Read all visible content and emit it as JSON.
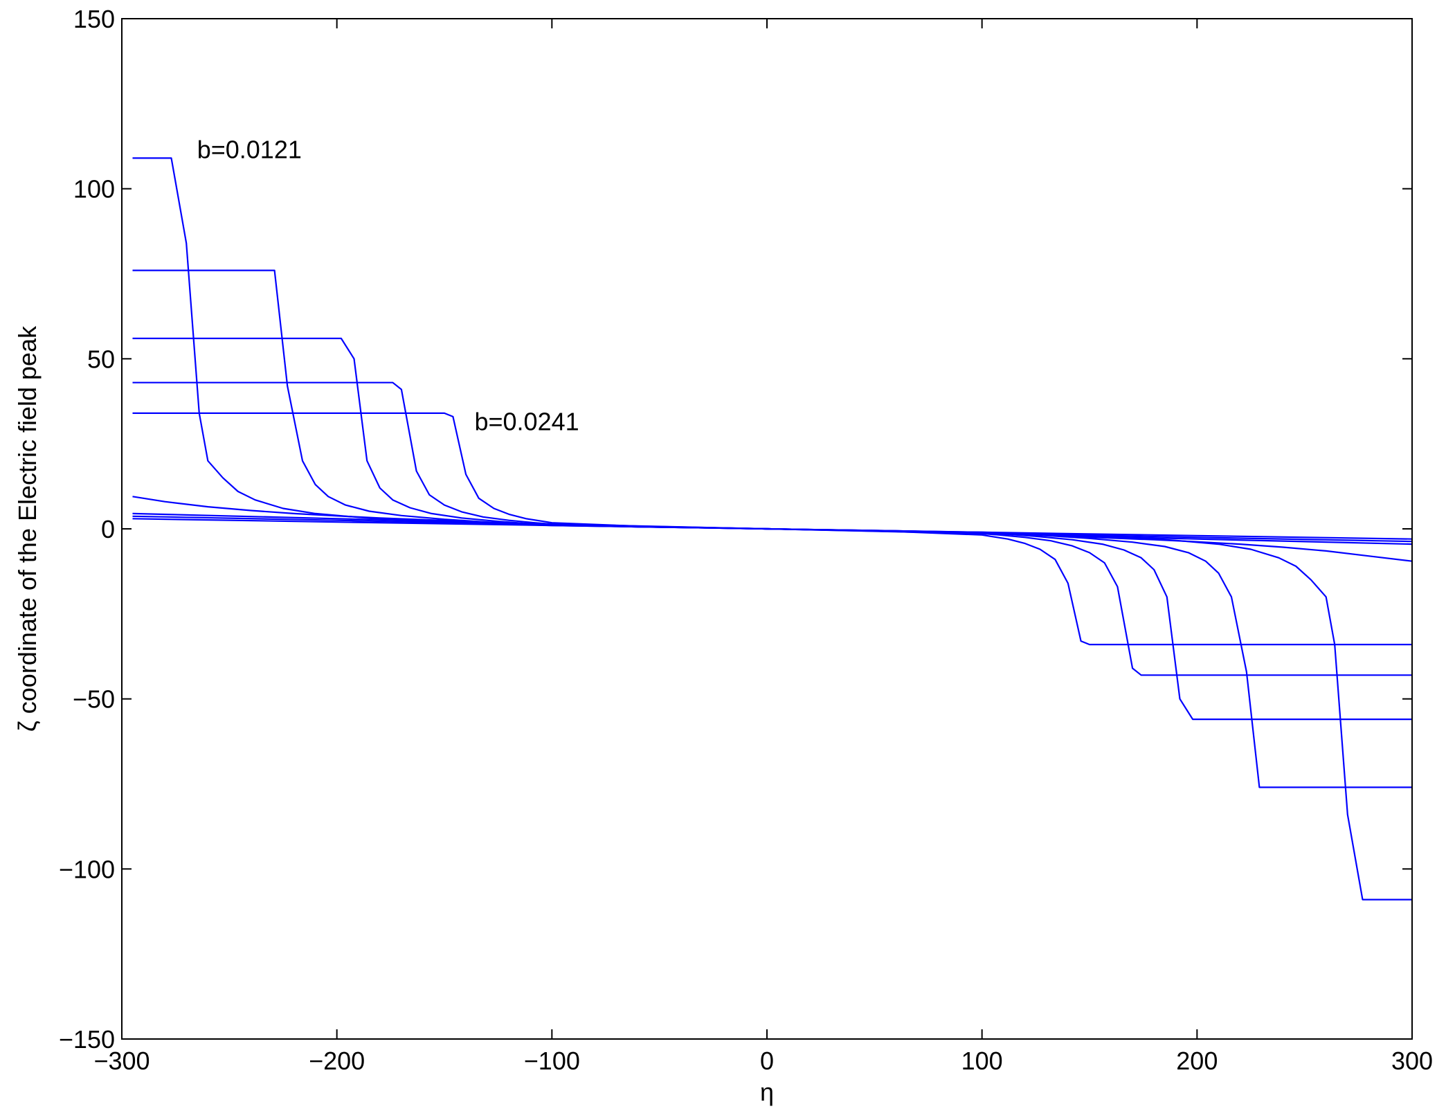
{
  "chart_data": {
    "type": "line",
    "title": "",
    "xlabel": "η",
    "ylabel": "ζ coordinate of the Electric field peak",
    "xlim": [
      -300,
      300
    ],
    "ylim": [
      -150,
      150
    ],
    "xticks": [
      -300,
      -200,
      -100,
      0,
      100,
      200,
      300
    ],
    "yticks": [
      -150,
      -100,
      -50,
      0,
      50,
      100,
      150
    ],
    "xtick_labels": [
      "−300",
      "−200",
      "−100",
      "0",
      "100",
      "200",
      "300"
    ],
    "ytick_labels": [
      "−150",
      "−100",
      "−50",
      "0",
      "50",
      "100",
      "150"
    ],
    "grid": false,
    "line_color": "#0000ff",
    "annotations": [
      {
        "text": "b=0.0121",
        "x": -265,
        "y": 109
      },
      {
        "text": "b=0.0241",
        "x": -136,
        "y": 29
      }
    ],
    "series": [
      {
        "x": [
          -295,
          -277,
          -270,
          -264,
          -260,
          -253,
          -246,
          -238,
          -225,
          -210,
          -190,
          -165,
          -140,
          -110,
          -100,
          -80,
          -40,
          0,
          40,
          80,
          100,
          110,
          140,
          165,
          190,
          210,
          225,
          238,
          246,
          253,
          260,
          264,
          270,
          277,
          300
        ],
        "y": [
          109,
          109,
          84,
          34,
          20,
          15,
          11,
          8.5,
          6,
          4.5,
          3.4,
          2.4,
          1.8,
          1.2,
          1.0,
          0.8,
          0.4,
          0,
          -0.4,
          -0.8,
          -1.0,
          -1.2,
          -1.8,
          -2.4,
          -3.4,
          -4.5,
          -6,
          -8.5,
          -11,
          -15,
          -20,
          -34,
          -84,
          -109,
          -109
        ]
      },
      {
        "x": [
          -295,
          -229,
          -223,
          -216,
          -210,
          -204,
          -196,
          -185,
          -170,
          -150,
          -130,
          -110,
          -100,
          -60,
          0,
          60,
          100,
          110,
          130,
          150,
          170,
          185,
          196,
          204,
          210,
          216,
          223,
          229,
          236,
          300
        ],
        "y": [
          76,
          76,
          42,
          20,
          13,
          9.5,
          7,
          5.2,
          3.9,
          2.8,
          2.0,
          1.4,
          1.1,
          0.6,
          0,
          -0.6,
          -1.1,
          -1.4,
          -2.0,
          -2.8,
          -3.9,
          -5.2,
          -7,
          -9.5,
          -13,
          -20,
          -42,
          -76,
          -76,
          -76
        ]
      },
      {
        "x": [
          -295,
          -198,
          -192,
          -186,
          -180,
          -174,
          -166,
          -156,
          -142,
          -125,
          -110,
          -100,
          -60,
          0,
          60,
          100,
          110,
          125,
          142,
          156,
          166,
          174,
          180,
          186,
          192,
          198,
          210,
          300
        ],
        "y": [
          56,
          56,
          50,
          20,
          12,
          8.5,
          6.2,
          4.5,
          3.2,
          2.2,
          1.5,
          1.2,
          0.6,
          0,
          -0.6,
          -1.2,
          -1.5,
          -2.2,
          -3.2,
          -4.5,
          -6.2,
          -8.5,
          -12,
          -20,
          -50,
          -56,
          -56,
          -56
        ]
      },
      {
        "x": [
          -295,
          -174,
          -170,
          -163,
          -157,
          -150,
          -142,
          -132,
          -120,
          -108,
          -100,
          -60,
          0,
          60,
          100,
          108,
          120,
          132,
          142,
          150,
          157,
          163,
          170,
          174,
          185,
          300
        ],
        "y": [
          43,
          43,
          41,
          17,
          10,
          7,
          5,
          3.5,
          2.5,
          1.8,
          1.4,
          0.7,
          0,
          -0.7,
          -1.4,
          -1.8,
          -2.5,
          -3.5,
          -5,
          -7,
          -10,
          -17,
          -41,
          -43,
          -43,
          -43
        ]
      },
      {
        "x": [
          -295,
          -150,
          -146,
          -140,
          -134,
          -127,
          -120,
          -112,
          -104,
          -100,
          -60,
          0,
          60,
          100,
          104,
          112,
          120,
          127,
          134,
          140,
          146,
          150,
          160,
          300
        ],
        "y": [
          34,
          34,
          33,
          16,
          9,
          6,
          4.3,
          3,
          2.2,
          1.8,
          0.8,
          0,
          -0.8,
          -1.8,
          -2.2,
          -3,
          -4.3,
          -6,
          -9,
          -16,
          -33,
          -34,
          -34,
          -34
        ]
      },
      {
        "x": [
          -295,
          -280,
          -260,
          -240,
          -220,
          -200,
          -180,
          -160,
          -140,
          -120,
          -100,
          -50,
          0,
          50,
          100,
          120,
          140,
          160,
          180,
          200,
          220,
          240,
          260,
          280,
          300
        ],
        "y": [
          9.5,
          8,
          6.5,
          5.4,
          4.5,
          3.8,
          3.2,
          2.7,
          2.2,
          1.7,
          1.3,
          0.6,
          0,
          -0.6,
          -1.3,
          -1.7,
          -2.2,
          -2.7,
          -3.2,
          -3.8,
          -4.5,
          -5.4,
          -6.5,
          -8,
          -9.5
        ]
      },
      {
        "x": [
          -295,
          -200,
          -100,
          0,
          100,
          200,
          300
        ],
        "y": [
          4.5,
          3.0,
          1.4,
          0,
          -1.4,
          -3.0,
          -4.5
        ]
      },
      {
        "x": [
          -295,
          -200,
          -100,
          0,
          100,
          200,
          300
        ],
        "y": [
          3.7,
          2.5,
          1.2,
          0,
          -1.2,
          -2.5,
          -3.7
        ]
      },
      {
        "x": [
          -295,
          -200,
          -100,
          0,
          100,
          200,
          300
        ],
        "y": [
          3.0,
          2.0,
          1.0,
          0,
          -1.0,
          -2.0,
          -3.0
        ]
      }
    ]
  }
}
